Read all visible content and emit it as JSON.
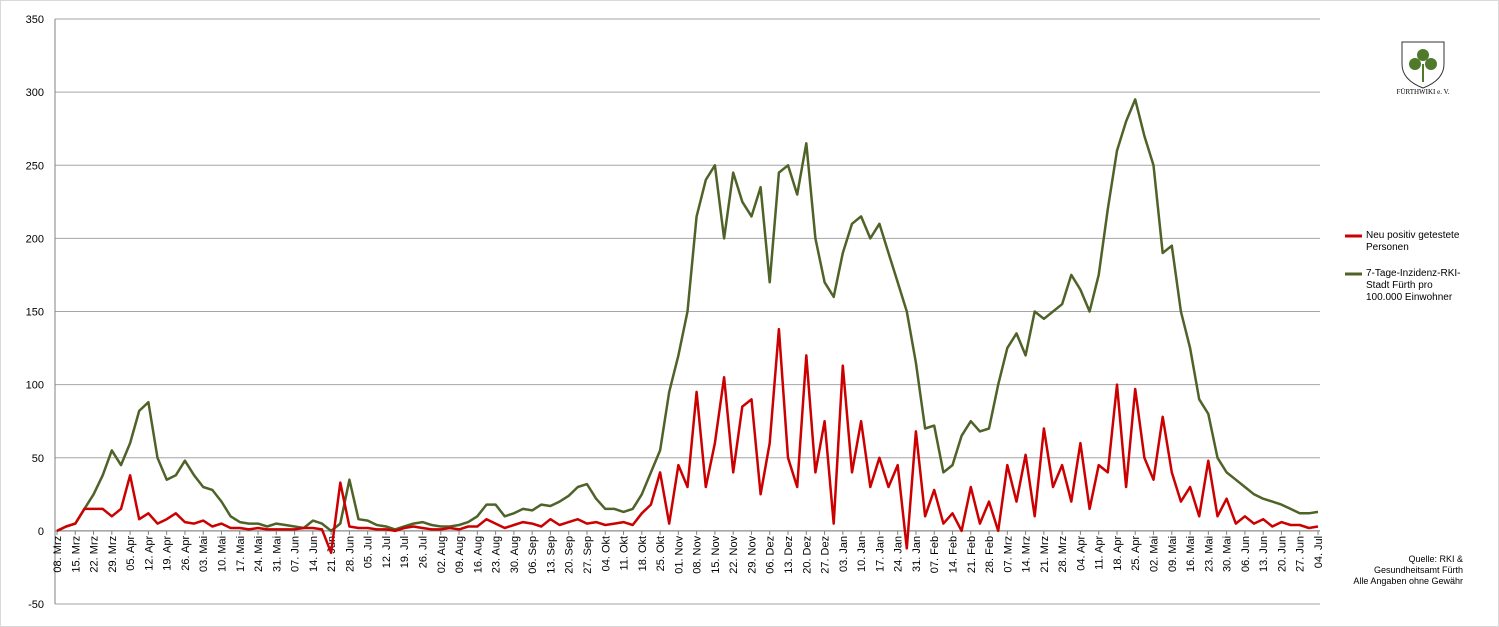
{
  "chart_data": {
    "type": "line",
    "categories": [
      "08. Mrz",
      null,
      "15. Mrz",
      null,
      "22. Mrz",
      null,
      "29. Mrz",
      null,
      "05. Apr",
      null,
      "12. Apr",
      null,
      "19. Apr",
      null,
      "26. Apr",
      null,
      "03. Mai",
      null,
      "10. Mai",
      null,
      "17. Mai",
      null,
      "24. Mai",
      null,
      "31. Mai",
      null,
      "07. Jun",
      null,
      "14. Jun",
      null,
      "21. Jun",
      null,
      "28. Jun",
      null,
      "05. Jul",
      null,
      "12. Jul",
      null,
      "19. Jul",
      null,
      "26. Jul",
      null,
      "02. Aug",
      null,
      "09. Aug",
      null,
      "16. Aug",
      null,
      "23. Aug",
      null,
      "30. Aug",
      null,
      "06. Sep",
      null,
      "13. Sep",
      null,
      "20. Sep",
      null,
      "27. Sep",
      null,
      "04. Okt",
      null,
      "11. Okt",
      null,
      "18. Okt",
      null,
      "25. Okt",
      null,
      "01. Nov",
      null,
      "08. Nov",
      null,
      "15. Nov",
      null,
      "22. Nov",
      null,
      "29. Nov",
      null,
      "06. Dez",
      null,
      "13. Dez",
      null,
      "20. Dez",
      null,
      "27. Dez",
      null,
      "03. Jan",
      null,
      "10. Jan",
      null,
      "17. Jan",
      null,
      "24. Jan",
      null,
      "31. Jan",
      null,
      "07. Feb",
      null,
      "14. Feb",
      null,
      "21. Feb",
      null,
      "28. Feb",
      null,
      "07. Mrz",
      null,
      "14. Mrz",
      null,
      "21. Mrz",
      null,
      "28. Mrz",
      null,
      "04. Apr",
      null,
      "11. Apr",
      null,
      "18. Apr",
      null,
      "25. Apr",
      null,
      "02. Mai",
      null,
      "09. Mai",
      null,
      "16. Mai",
      null,
      "23. Mai",
      null,
      "30. Mai",
      null,
      "06. Jun",
      null,
      "13. Jun",
      null,
      "20. Jun",
      null,
      "27. Jun",
      null,
      "04. Jul"
    ],
    "series": [
      {
        "name": "Neu positiv getestete Personen",
        "color": "#cc0000",
        "values": [
          0,
          3,
          5,
          15,
          15,
          15,
          10,
          15,
          38,
          8,
          12,
          5,
          8,
          12,
          6,
          5,
          7,
          3,
          5,
          2,
          2,
          1,
          2,
          1,
          1,
          1,
          1,
          2,
          2,
          1,
          -15,
          33,
          3,
          2,
          2,
          1,
          1,
          0,
          2,
          3,
          2,
          1,
          1,
          2,
          1,
          3,
          3,
          8,
          5,
          2,
          4,
          6,
          5,
          3,
          8,
          4,
          6,
          8,
          5,
          6,
          4,
          5,
          6,
          4,
          12,
          18,
          40,
          5,
          45,
          30,
          95,
          30,
          60,
          105,
          40,
          85,
          90,
          25,
          60,
          138,
          50,
          30,
          120,
          40,
          75,
          5,
          113,
          40,
          75,
          30,
          50,
          30,
          45,
          -12,
          68,
          10,
          28,
          5,
          12,
          0,
          30,
          5,
          20,
          0,
          45,
          20,
          52,
          10,
          70,
          30,
          45,
          20,
          60,
          15,
          45,
          40,
          100,
          30,
          97,
          50,
          35,
          78,
          40,
          20,
          30,
          10,
          48,
          10,
          22,
          5,
          10,
          5,
          8,
          3,
          6,
          4,
          4,
          2,
          3
        ]
      },
      {
        "name": "7-Tage-Inzidenz-RKI-Stadt Fürth pro 100.000 Einwohner",
        "color": "#4f6228",
        "values": [
          0,
          3,
          5,
          15,
          25,
          38,
          55,
          45,
          60,
          82,
          88,
          50,
          35,
          38,
          48,
          38,
          30,
          28,
          20,
          10,
          6,
          5,
          5,
          3,
          5,
          4,
          3,
          2,
          7,
          5,
          0,
          5,
          35,
          8,
          7,
          4,
          3,
          1,
          3,
          5,
          6,
          4,
          3,
          3,
          4,
          6,
          10,
          18,
          18,
          10,
          12,
          15,
          14,
          18,
          17,
          20,
          24,
          30,
          32,
          22,
          15,
          15,
          13,
          15,
          25,
          40,
          55,
          95,
          120,
          150,
          215,
          240,
          250,
          200,
          245,
          225,
          215,
          235,
          170,
          245,
          250,
          230,
          265,
          200,
          170,
          160,
          190,
          210,
          215,
          200,
          210,
          190,
          170,
          150,
          115,
          70,
          72,
          40,
          45,
          65,
          75,
          68,
          70,
          100,
          125,
          135,
          120,
          150,
          145,
          150,
          155,
          175,
          165,
          150,
          175,
          220,
          260,
          280,
          295,
          270,
          250,
          190,
          195,
          150,
          125,
          90,
          80,
          50,
          40,
          35,
          30,
          25,
          22,
          20,
          18,
          15,
          12,
          12,
          13
        ]
      }
    ],
    "ylim": [
      -50,
      350
    ],
    "yticks": [
      -50,
      0,
      50,
      100,
      150,
      200,
      250,
      300,
      350
    ],
    "grid": true,
    "legend": "right",
    "source": [
      "Quelle: RKI &",
      "Gesundheitsamt Fürth",
      "Alle Angaben ohne Gewähr"
    ]
  },
  "logo": "FÜRTHWIKI e. V."
}
